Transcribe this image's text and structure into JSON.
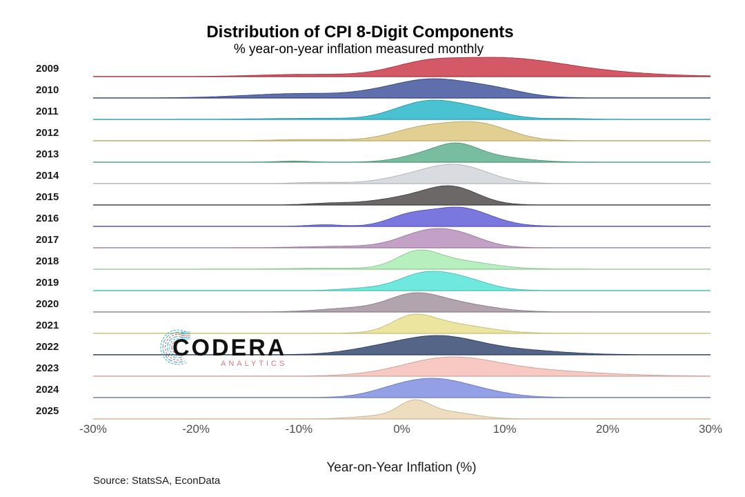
{
  "chart_data": {
    "type": "ridgeline",
    "title": "Distribution of CPI 8-Digit Components",
    "subtitle": "% year-on-year inflation measured monthly",
    "xlabel": "Year-on-Year Inflation (%)",
    "xlim": [
      -30,
      30
    ],
    "xticks": [
      -30,
      -20,
      -10,
      0,
      10,
      20,
      30
    ],
    "xtick_labels": [
      "-30%",
      "-20%",
      "-10%",
      "0%",
      "10%",
      "20%",
      "30%"
    ],
    "source": "Source: StatsSA, EconData",
    "series": [
      {
        "name": "2009",
        "color": "#c93545",
        "peaks": [
          {
            "center": 9.5,
            "width": 6.5,
            "height": 1.0
          },
          {
            "center": 2.0,
            "width": 3.0,
            "height": 0.35
          },
          {
            "center": -10,
            "width": 4,
            "height": 0.1
          },
          {
            "center": 22,
            "width": 5,
            "height": 0.08
          }
        ]
      },
      {
        "name": "2010",
        "color": "#3a4f9a",
        "peaks": [
          {
            "center": 3.0,
            "width": 3.5,
            "height": 1.0
          },
          {
            "center": 9.0,
            "width": 3.0,
            "height": 0.45
          },
          {
            "center": -10,
            "width": 5.0,
            "height": 0.25
          },
          {
            "center": -2,
            "width": 3,
            "height": 0.2
          }
        ]
      },
      {
        "name": "2011",
        "color": "#22b5c8",
        "peaks": [
          {
            "center": 1.0,
            "width": 2.5,
            "height": 0.9
          },
          {
            "center": 6.5,
            "width": 3.0,
            "height": 0.95
          },
          {
            "center": 3.5,
            "width": 2.0,
            "height": 0.4
          },
          {
            "center": 16,
            "width": 2,
            "height": 0.06
          },
          {
            "center": -8,
            "width": 5,
            "height": 0.08
          }
        ]
      },
      {
        "name": "2012",
        "color": "#dcc57a",
        "peaks": [
          {
            "center": 7.5,
            "width": 3.0,
            "height": 1.0
          },
          {
            "center": 2.0,
            "width": 3.0,
            "height": 0.75
          },
          {
            "center": -9,
            "width": 3,
            "height": 0.07
          }
        ]
      },
      {
        "name": "2013",
        "color": "#5aae8a",
        "peaks": [
          {
            "center": 5.5,
            "width": 2.0,
            "height": 1.0
          },
          {
            "center": 2.5,
            "width": 2.5,
            "height": 0.6
          },
          {
            "center": 9,
            "width": 3,
            "height": 0.4
          },
          {
            "center": -10.5,
            "width": 1.5,
            "height": 0.08
          }
        ]
      },
      {
        "name": "2014",
        "color": "#cfd3d9",
        "peaks": [
          {
            "center": 5.5,
            "width": 3.0,
            "height": 1.0
          },
          {
            "center": 1.0,
            "width": 3.0,
            "height": 0.35
          },
          {
            "center": -8,
            "width": 2,
            "height": 0.06
          }
        ]
      },
      {
        "name": "2015",
        "color": "#4a4746",
        "peaks": [
          {
            "center": 5.0,
            "width": 2.5,
            "height": 1.0
          },
          {
            "center": 1.0,
            "width": 3.5,
            "height": 0.5
          },
          {
            "center": -7,
            "width": 2,
            "height": 0.1
          }
        ]
      },
      {
        "name": "2016",
        "color": "#5d5ad8",
        "peaks": [
          {
            "center": 5.5,
            "width": 3.0,
            "height": 1.0
          },
          {
            "center": 0.5,
            "width": 2.0,
            "height": 0.45
          },
          {
            "center": -7.5,
            "width": 1.5,
            "height": 0.08
          }
        ]
      },
      {
        "name": "2017",
        "color": "#b68cba",
        "peaks": [
          {
            "center": 2.0,
            "width": 2.5,
            "height": 1.0
          },
          {
            "center": 5.5,
            "width": 2.5,
            "height": 0.95
          },
          {
            "center": -5,
            "width": 4,
            "height": 0.12
          }
        ]
      },
      {
        "name": "2018",
        "color": "#a8ebb0",
        "peaks": [
          {
            "center": 1.5,
            "width": 2.0,
            "height": 1.0
          },
          {
            "center": 5.0,
            "width": 3.5,
            "height": 0.6
          },
          {
            "center": -7,
            "width": 4,
            "height": 0.06
          }
        ]
      },
      {
        "name": "2019",
        "color": "#4fe3d5",
        "peaks": [
          {
            "center": 2.0,
            "width": 2.5,
            "height": 1.0
          },
          {
            "center": 6.0,
            "width": 2.5,
            "height": 0.65
          },
          {
            "center": -4,
            "width": 2,
            "height": 0.12
          }
        ]
      },
      {
        "name": "2020",
        "color": "#a0909c",
        "peaks": [
          {
            "center": 1.0,
            "width": 2.5,
            "height": 1.0
          },
          {
            "center": 5.0,
            "width": 3.5,
            "height": 0.6
          },
          {
            "center": -5,
            "width": 3,
            "height": 0.25
          }
        ]
      },
      {
        "name": "2021",
        "color": "#e8df8a",
        "peaks": [
          {
            "center": 1.0,
            "width": 2.0,
            "height": 1.0
          },
          {
            "center": 4.5,
            "width": 3.5,
            "height": 0.7
          }
        ]
      },
      {
        "name": "2022",
        "color": "#2e436e",
        "peaks": [
          {
            "center": 3.5,
            "width": 4.0,
            "height": 1.0
          },
          {
            "center": 12,
            "width": 4,
            "height": 0.2
          },
          {
            "center": -3,
            "width": 3,
            "height": 0.2
          }
        ]
      },
      {
        "name": "2023",
        "color": "#f7bcb6",
        "peaks": [
          {
            "center": 4.5,
            "width": 4.5,
            "height": 1.0
          },
          {
            "center": 13,
            "width": 6,
            "height": 0.3
          }
        ]
      },
      {
        "name": "2024",
        "color": "#7d8be0",
        "peaks": [
          {
            "center": 3.0,
            "width": 3.0,
            "height": 1.0
          },
          {
            "center": -1,
            "width": 2.5,
            "height": 0.35
          },
          {
            "center": 7.5,
            "width": 3.0,
            "height": 0.35
          }
        ]
      },
      {
        "name": "2025",
        "color": "#ecd6b2",
        "peaks": [
          {
            "center": 1.2,
            "width": 1.5,
            "height": 1.0
          },
          {
            "center": 4.5,
            "width": 2.5,
            "height": 0.45
          },
          {
            "center": -2,
            "width": 2.5,
            "height": 0.2
          }
        ]
      }
    ]
  },
  "logo": {
    "wordmark": "CODERA",
    "tagline": "ANALYTICS",
    "mark_colors": [
      "#d24a5b",
      "#3a9ad9",
      "#27b3a5"
    ]
  }
}
